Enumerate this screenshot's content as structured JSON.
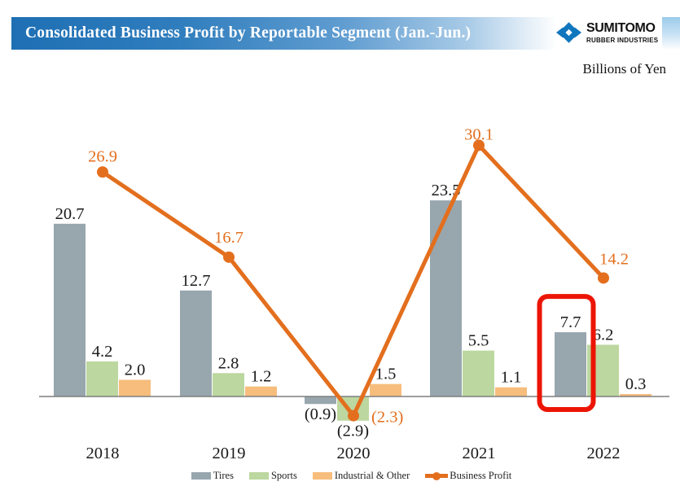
{
  "header": {
    "title": "Consolidated Business Profit by Reportable Segment (Jan.-Jun.)",
    "logo_line1": "SUMITOMO",
    "logo_line2": "RUBBER INDUSTRIES",
    "units_note": "Billions of Yen"
  },
  "colors": {
    "header_blue": "#1e6fb4",
    "logo_blue": "#1076be",
    "value_label": "#1a1a1a",
    "axis": "#7f7f7f",
    "highlight_red": "#ec1505"
  },
  "chart_data": {
    "type": "bar+line",
    "title": "Consolidated Business Profit by Reportable Segment (Jan.-Jun.)",
    "units": "Billions of Yen",
    "categories": [
      "2018",
      "2019",
      "2020",
      "2021",
      "2022"
    ],
    "series": [
      {
        "name": "Tires",
        "type": "bar",
        "color": "#98a6ae",
        "values": [
          20.7,
          12.7,
          -0.9,
          23.5,
          7.7
        ]
      },
      {
        "name": "Sports",
        "type": "bar",
        "color": "#bcd79f",
        "values": [
          4.2,
          2.8,
          -2.9,
          5.5,
          6.2
        ]
      },
      {
        "name": "Industrial & Other",
        "type": "bar",
        "color": "#f7bd7d",
        "values": [
          2.0,
          1.2,
          1.5,
          1.1,
          0.3
        ]
      },
      {
        "name": "Business Profit",
        "type": "line",
        "color": "#e36f1e",
        "values": [
          26.9,
          16.7,
          -2.3,
          30.1,
          14.2
        ]
      }
    ],
    "negative_format": "parentheses",
    "highlight": {
      "series": "Tires",
      "category": "2022"
    },
    "legend_position": "bottom",
    "gridlines": false,
    "y_axis_hidden": true
  }
}
